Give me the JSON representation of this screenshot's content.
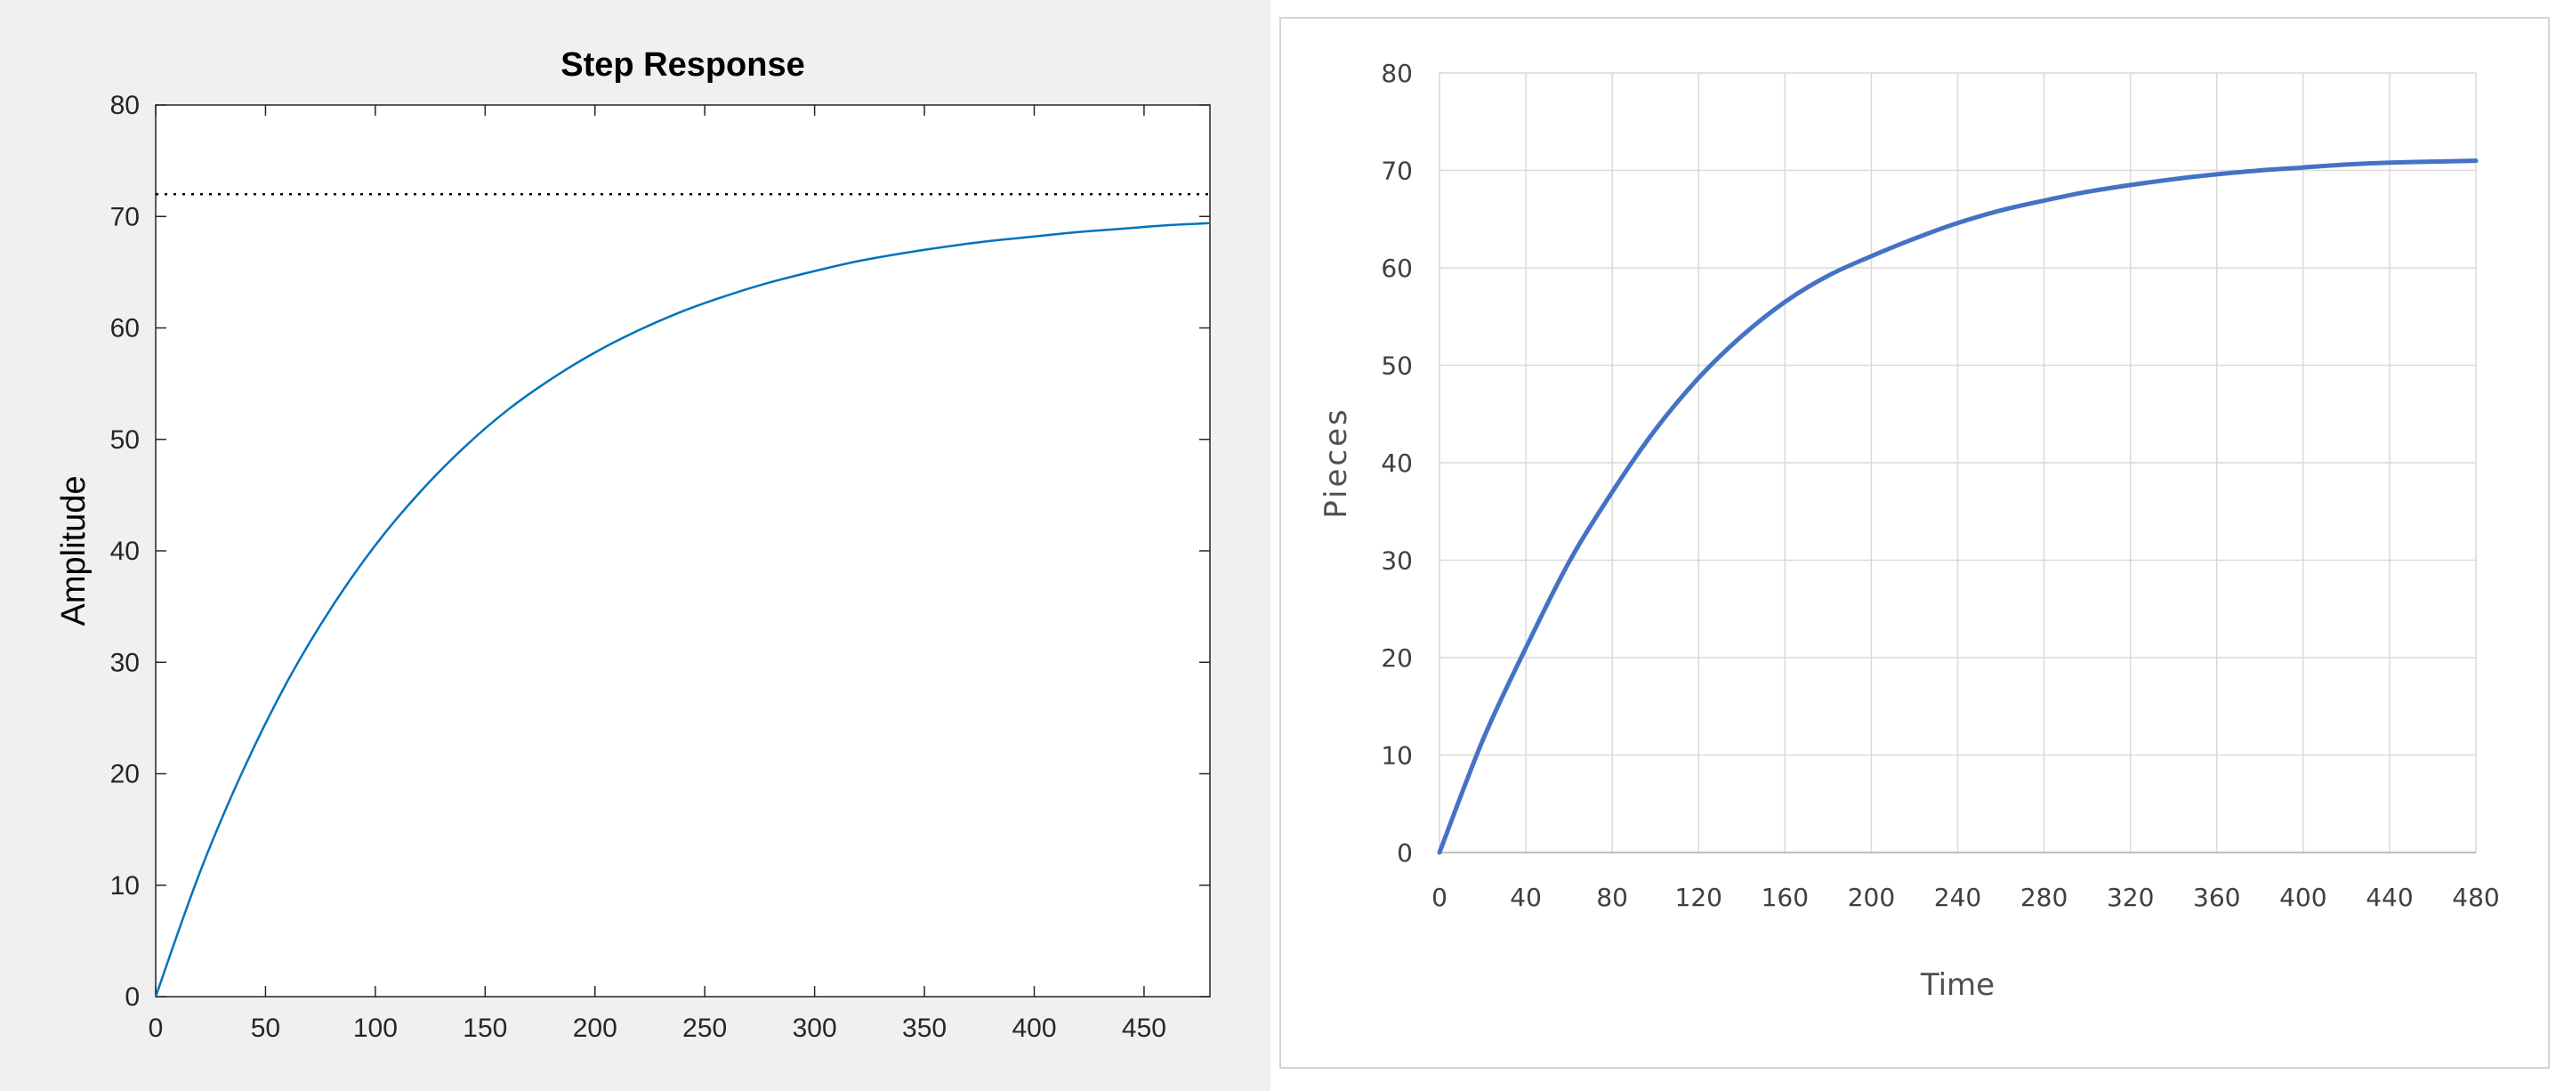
{
  "chart_data": [
    {
      "type": "line",
      "title": "Step Response",
      "xlabel": "",
      "ylabel": "Amplitude",
      "xlim": [
        0,
        480
      ],
      "ylim": [
        0,
        80
      ],
      "x_ticks": [
        0,
        50,
        100,
        150,
        200,
        250,
        300,
        350,
        400,
        450
      ],
      "y_ticks": [
        0,
        10,
        20,
        30,
        40,
        50,
        60,
        70,
        80
      ],
      "grid": false,
      "colors": {
        "line": "#0072BD",
        "reference": "#000000",
        "background": "#f0f0f0"
      },
      "reference_line": {
        "y": 72,
        "style": "dotted"
      },
      "series": [
        {
          "x": [
            0,
            20,
            40,
            60,
            80,
            100,
            120,
            140,
            160,
            180,
            200,
            220,
            240,
            260,
            280,
            300,
            320,
            340,
            360,
            380,
            400,
            420,
            440,
            460,
            480
          ],
          "y": [
            0,
            11.1,
            20.4,
            28.3,
            34.9,
            40.5,
            45.2,
            49.2,
            52.6,
            55.4,
            57.8,
            59.8,
            61.5,
            62.9,
            64.1,
            65.1,
            66.0,
            66.7,
            67.3,
            67.8,
            68.2,
            68.6,
            68.9,
            69.2,
            69.4
          ]
        }
      ]
    },
    {
      "type": "line",
      "title": "",
      "xlabel": "Time",
      "ylabel": "Pieces",
      "xlim": [
        0,
        480
      ],
      "ylim": [
        0,
        80
      ],
      "x_ticks": [
        0,
        40,
        80,
        120,
        160,
        200,
        240,
        280,
        320,
        360,
        400,
        440,
        480
      ],
      "y_ticks": [
        0,
        10,
        20,
        30,
        40,
        50,
        60,
        70,
        80
      ],
      "grid": true,
      "colors": {
        "line": "#4472C4",
        "grid": "#d9d9d9"
      },
      "series": [
        {
          "x": [
            0,
            20,
            40,
            60,
            80,
            100,
            120,
            140,
            160,
            180,
            200,
            220,
            240,
            260,
            280,
            300,
            320,
            340,
            360,
            380,
            400,
            420,
            440,
            460,
            480
          ],
          "y": [
            0,
            11.5,
            21.0,
            29.8,
            37.0,
            43.4,
            48.7,
            53.0,
            56.5,
            59.2,
            61.2,
            63.0,
            64.6,
            65.9,
            66.9,
            67.8,
            68.5,
            69.1,
            69.6,
            70.0,
            70.3,
            70.6,
            70.8,
            70.9,
            71.0
          ]
        }
      ]
    }
  ]
}
